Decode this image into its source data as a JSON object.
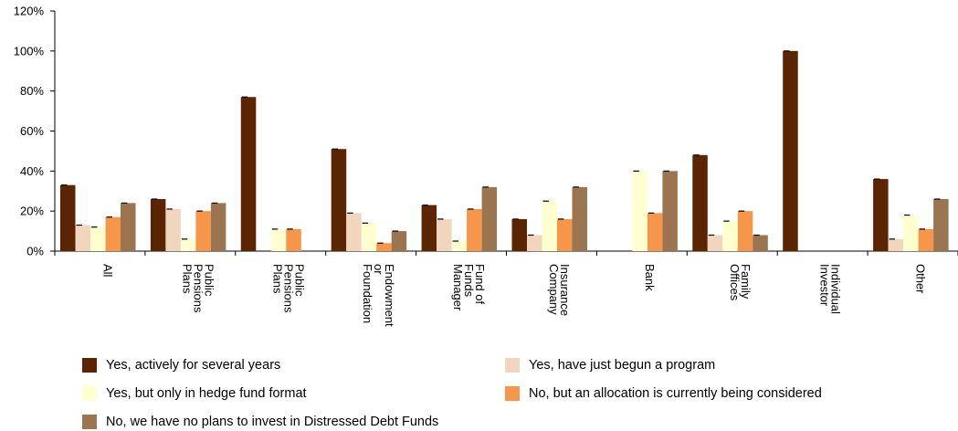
{
  "chart_data": {
    "type": "bar",
    "categories": [
      [
        "All"
      ],
      [
        "Public",
        "Pensions",
        "Plans"
      ],
      [
        "Public",
        "Pensions",
        "Plans"
      ],
      [
        "Endowment",
        "or",
        "Foundation"
      ],
      [
        "Fund of",
        "Funds",
        "Manager"
      ],
      [
        "Insurance",
        "Company"
      ],
      [
        "Bank"
      ],
      [
        "Family",
        "Offices"
      ],
      [
        "Individual",
        "Investor"
      ],
      [
        "Other"
      ]
    ],
    "series": [
      {
        "name": "Yes, actively for several years",
        "color": "#5a2500",
        "values": [
          33,
          26,
          77,
          51,
          23,
          16,
          0,
          48,
          100,
          36
        ]
      },
      {
        "name": "Yes, have just begun a program",
        "color": "#f1d6bd",
        "values": [
          13,
          21,
          0,
          19,
          16,
          8,
          0,
          8,
          0,
          6
        ]
      },
      {
        "name": "Yes, but only in hedge fund format",
        "color": "#ffffd0",
        "values": [
          12,
          6,
          11,
          14,
          5,
          25,
          40,
          15,
          0,
          18
        ]
      },
      {
        "name": "No, but an allocation is currently being considered",
        "color": "#f5964b",
        "values": [
          17,
          20,
          11,
          4,
          21,
          16,
          19,
          20,
          0,
          11
        ]
      },
      {
        "name": "No, we have no plans to invest in Distressed Debt Funds",
        "color": "#9b7550",
        "values": [
          24,
          24,
          0,
          10,
          32,
          32,
          40,
          8,
          0,
          26
        ]
      }
    ],
    "ytick_labels": [
      "0%",
      "20%",
      "40%",
      "60%",
      "80%",
      "100%",
      "120%"
    ],
    "ylim": [
      0,
      120
    ],
    "grid": false,
    "legend_position": "bottom"
  }
}
